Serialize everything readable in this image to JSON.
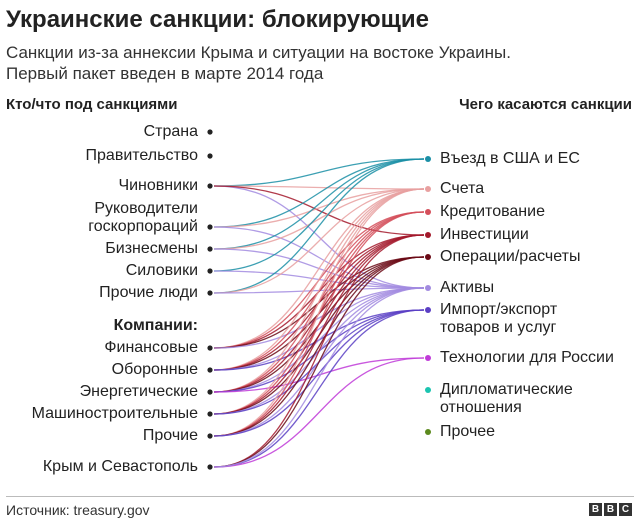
{
  "title": "Украинские санкции: блокирующие",
  "subtitle_line1": "Санкции из-за аннексии Крыма и ситуации на востоке Украины.",
  "subtitle_line2": "Первый пакет введен в марте 2014 года",
  "left_header": "Кто/что под санкциями",
  "right_header": "Чего касаются санкции",
  "left_nodes": [
    {
      "id": "strana",
      "label": "Страна"
    },
    {
      "id": "pravitelstvo",
      "label": "Правительство"
    },
    {
      "id": "chinovniki",
      "label": "Чиновники"
    },
    {
      "id": "rukovoditeli",
      "label": "Руководители\nгоскорпораций"
    },
    {
      "id": "biznesmeny",
      "label": "Бизнесмены"
    },
    {
      "id": "siloviki",
      "label": "Силовики"
    },
    {
      "id": "prochie_lyudi",
      "label": "Прочие люди"
    },
    {
      "id": "kompanii",
      "label": "Компании:",
      "heading": true
    },
    {
      "id": "finansovye",
      "label": "Финансовые"
    },
    {
      "id": "oboronnye",
      "label": "Оборонные"
    },
    {
      "id": "energeticheskie",
      "label": "Энергетические"
    },
    {
      "id": "mashino",
      "label": "Машиностроительные"
    },
    {
      "id": "prochie",
      "label": "Прочие"
    },
    {
      "id": "krym",
      "label": "Крым и Севастополь"
    }
  ],
  "right_nodes": [
    {
      "id": "vezd",
      "label": "Въезд в США и ЕС",
      "color": "#1b8fa6"
    },
    {
      "id": "scheta",
      "label": "Счета",
      "color": "#e8a0a0"
    },
    {
      "id": "kredit",
      "label": "Кредитование",
      "color": "#d44f5a"
    },
    {
      "id": "invest",
      "label": "Инвестиции",
      "color": "#a3192b"
    },
    {
      "id": "operacii",
      "label": "Операции/расчеты",
      "color": "#6b0a16"
    },
    {
      "id": "aktivy",
      "label": "Активы",
      "color": "#a28be0"
    },
    {
      "id": "import",
      "label": "Импорт/экспорт\nтоваров и услуг",
      "color": "#5b3fc4"
    },
    {
      "id": "tehnol",
      "label": "Технологии для России",
      "color": "#c03bd8"
    },
    {
      "id": "diplo",
      "label": "Дипломатические\nотношения",
      "color": "#1bc4b0"
    },
    {
      "id": "prochee",
      "label": "Прочее",
      "color": "#5c8a1e"
    }
  ],
  "links": [
    [
      "chinovniki",
      "vezd"
    ],
    [
      "chinovniki",
      "scheta"
    ],
    [
      "chinovniki",
      "aktivy"
    ],
    [
      "chinovniki",
      "invest"
    ],
    [
      "rukovoditeli",
      "vezd"
    ],
    [
      "rukovoditeli",
      "scheta"
    ],
    [
      "rukovoditeli",
      "aktivy"
    ],
    [
      "biznesmeny",
      "vezd"
    ],
    [
      "biznesmeny",
      "scheta"
    ],
    [
      "biznesmeny",
      "aktivy"
    ],
    [
      "siloviki",
      "vezd"
    ],
    [
      "siloviki",
      "aktivy"
    ],
    [
      "prochie_lyudi",
      "vezd"
    ],
    [
      "prochie_lyudi",
      "scheta"
    ],
    [
      "prochie_lyudi",
      "aktivy"
    ],
    [
      "finansovye",
      "scheta"
    ],
    [
      "finansovye",
      "kredit"
    ],
    [
      "finansovye",
      "invest"
    ],
    [
      "finansovye",
      "operacii"
    ],
    [
      "finansovye",
      "aktivy"
    ],
    [
      "oboronnye",
      "scheta"
    ],
    [
      "oboronnye",
      "kredit"
    ],
    [
      "oboronnye",
      "invest"
    ],
    [
      "oboronnye",
      "operacii"
    ],
    [
      "oboronnye",
      "aktivy"
    ],
    [
      "oboronnye",
      "import"
    ],
    [
      "energeticheskie",
      "scheta"
    ],
    [
      "energeticheskie",
      "kredit"
    ],
    [
      "energeticheskie",
      "invest"
    ],
    [
      "energeticheskie",
      "operacii"
    ],
    [
      "energeticheskie",
      "aktivy"
    ],
    [
      "energeticheskie",
      "import"
    ],
    [
      "energeticheskie",
      "tehnol"
    ],
    [
      "mashino",
      "scheta"
    ],
    [
      "mashino",
      "kredit"
    ],
    [
      "mashino",
      "invest"
    ],
    [
      "mashino",
      "operacii"
    ],
    [
      "mashino",
      "aktivy"
    ],
    [
      "mashino",
      "import"
    ],
    [
      "prochie",
      "scheta"
    ],
    [
      "prochie",
      "kredit"
    ],
    [
      "prochie",
      "invest"
    ],
    [
      "prochie",
      "operacii"
    ],
    [
      "prochie",
      "aktivy"
    ],
    [
      "prochie",
      "import"
    ],
    [
      "krym",
      "invest"
    ],
    [
      "krym",
      "operacii"
    ],
    [
      "krym",
      "import"
    ],
    [
      "krym",
      "tehnol"
    ],
    [
      "krym",
      "aktivy"
    ]
  ],
  "node_dot_color": "#222222",
  "source": "Источник: treasury.gov",
  "logo_letters": [
    "B",
    "B",
    "C"
  ]
}
